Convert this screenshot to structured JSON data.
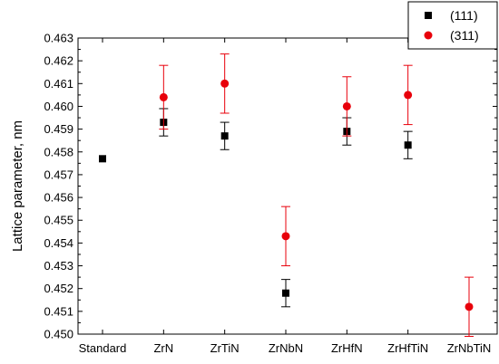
{
  "chart_data": {
    "type": "scatter",
    "title": "",
    "xlabel": "",
    "ylabel": "Lattice parameter, nm",
    "categories": [
      "Standard",
      "ZrN",
      "ZrTiN",
      "ZrNbN",
      "ZrHfN",
      "ZrHfTiN",
      "ZrNbTiN"
    ],
    "ylim": [
      0.45,
      0.463
    ],
    "yticks": [
      "0.450",
      "0.451",
      "0.452",
      "0.453",
      "0.454",
      "0.455",
      "0.456",
      "0.457",
      "0.458",
      "0.459",
      "0.460",
      "0.461",
      "0.462",
      "0.463"
    ],
    "grid": false,
    "legend_position": "top-right",
    "series": [
      {
        "name": "(111)",
        "marker": "square",
        "color": "#000000",
        "values": [
          0.4577,
          0.4593,
          0.4587,
          0.4518,
          0.4589,
          0.4583,
          null
        ],
        "errors": [
          null,
          0.0006,
          0.0006,
          0.0006,
          0.0006,
          0.0006,
          null
        ]
      },
      {
        "name": "(311)",
        "marker": "circle",
        "color": "#e8000b",
        "values": [
          null,
          0.4604,
          0.461,
          0.4543,
          0.46,
          0.4605,
          0.4512
        ],
        "errors": [
          null,
          0.0014,
          0.0013,
          0.0013,
          0.0013,
          0.0013,
          0.0013
        ]
      }
    ]
  }
}
